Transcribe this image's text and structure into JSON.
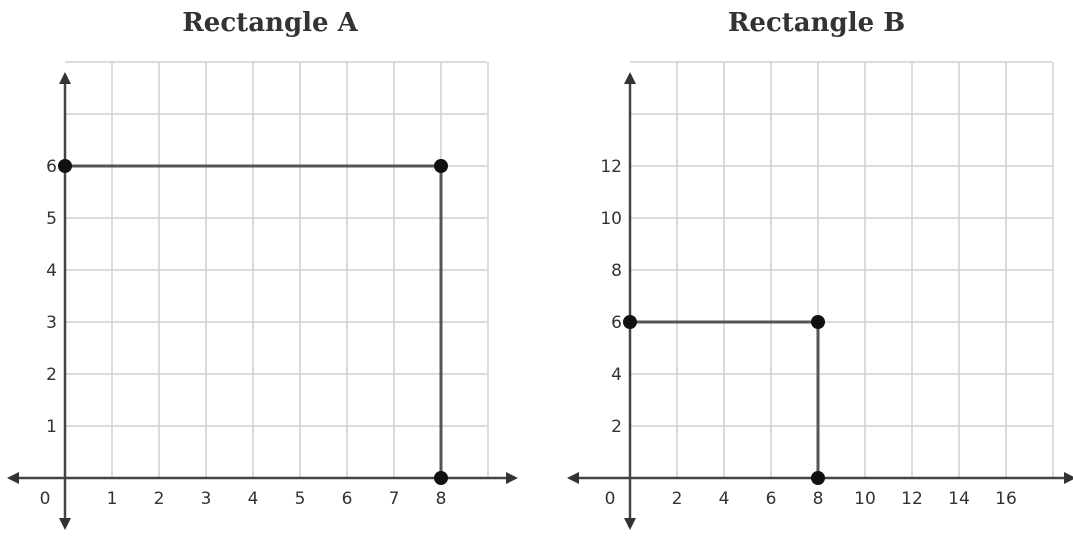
{
  "chart_data": [
    {
      "type": "scatter",
      "title": "Rectangle A",
      "x_ticks": [
        "0",
        "1",
        "2",
        "3",
        "4",
        "5",
        "6",
        "7",
        "8"
      ],
      "y_ticks": [
        "1",
        "2",
        "3",
        "4",
        "5",
        "6"
      ],
      "xlim": [
        0,
        9
      ],
      "ylim": [
        0,
        8
      ],
      "grid": true,
      "points": [
        {
          "x": 0,
          "y": 6
        },
        {
          "x": 8,
          "y": 6
        },
        {
          "x": 8,
          "y": 0
        }
      ],
      "segments": [
        [
          [
            0,
            6
          ],
          [
            8,
            6
          ]
        ],
        [
          [
            8,
            6
          ],
          [
            8,
            0
          ]
        ]
      ]
    },
    {
      "type": "scatter",
      "title": "Rectangle B",
      "x_ticks": [
        "0",
        "2",
        "4",
        "6",
        "8",
        "10",
        "12",
        "14",
        "16"
      ],
      "y_ticks": [
        "2",
        "4",
        "6",
        "8",
        "10",
        "12"
      ],
      "xlim": [
        0,
        18
      ],
      "ylim": [
        0,
        16
      ],
      "grid": true,
      "points": [
        {
          "x": 0,
          "y": 6
        },
        {
          "x": 8,
          "y": 6
        },
        {
          "x": 8,
          "y": 0
        }
      ],
      "segments": [
        [
          [
            0,
            6
          ],
          [
            8,
            6
          ]
        ],
        [
          [
            8,
            6
          ],
          [
            8,
            0
          ]
        ]
      ]
    }
  ]
}
